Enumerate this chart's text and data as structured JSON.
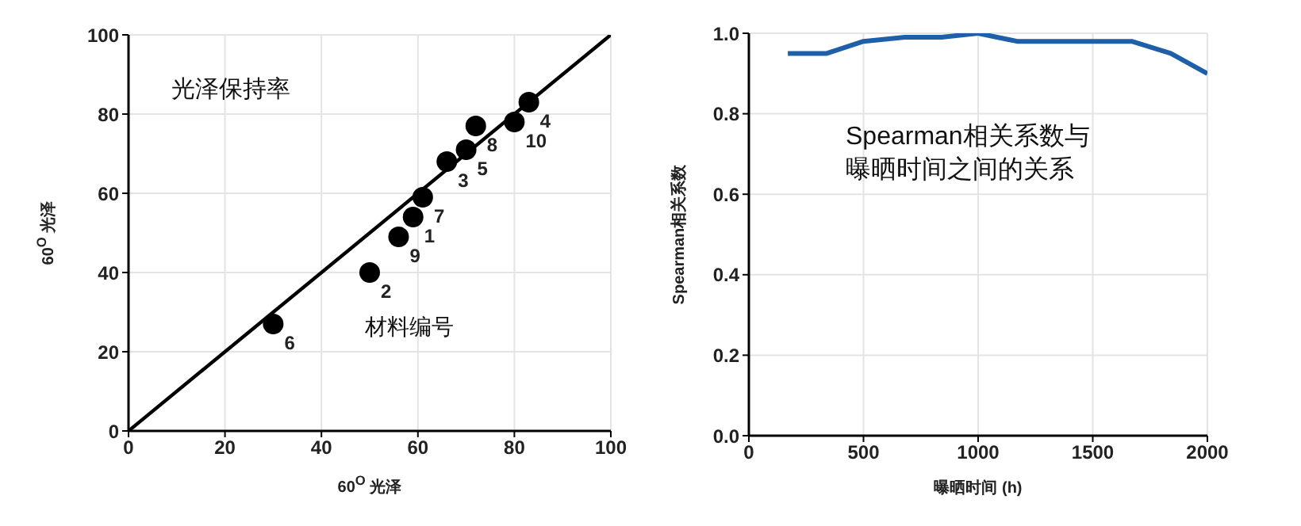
{
  "chart_data": [
    {
      "type": "scatter",
      "title": "光泽保持率",
      "xlabel": "60$^{O}$ 光泽",
      "ylabel": "60$^{O}$ 光泽",
      "annotations": [
        "材料编号",
        {
          "text": "6",
          "x": 30,
          "y": 27
        },
        {
          "text": "2",
          "x": 50,
          "y": 40
        },
        {
          "text": "9",
          "x": 56,
          "y": 49
        },
        {
          "text": "1",
          "x": 59,
          "y": 54
        },
        {
          "text": "7",
          "x": 61,
          "y": 59
        },
        {
          "text": "3",
          "x": 66,
          "y": 68
        },
        {
          "text": "5",
          "x": 70,
          "y": 71
        },
        {
          "text": "8",
          "x": 72,
          "y": 77
        },
        {
          "text": "10",
          "x": 80,
          "y": 78
        },
        {
          "text": "4",
          "x": 83,
          "y": 83
        }
      ],
      "xlim": [
        0,
        100
      ],
      "ylim": [
        0,
        100
      ],
      "xticks": [
        0,
        20,
        40,
        60,
        80,
        100
      ],
      "yticks": [
        0,
        20,
        40,
        60,
        80,
        100
      ],
      "grid": true,
      "series": [
        {
          "color": "#000000",
          "marker": "circle",
          "x": [
            30,
            50,
            56,
            59,
            61,
            66,
            70,
            72,
            80,
            83
          ],
          "values": [
            27,
            40,
            49,
            54,
            59,
            68,
            71,
            77,
            78,
            83
          ]
        },
        {
          "type": "line",
          "color": "#000000",
          "x": [
            0,
            100
          ],
          "values": [
            0,
            100
          ]
        }
      ]
    },
    {
      "type": "line",
      "title": "Spearman相关系数与曝晒时间之间的关系",
      "xlabel": "曝晒时间 (h)",
      "ylabel": "Spearman相关系数",
      "xlim": [
        0,
        2000
      ],
      "ylim": [
        0,
        1
      ],
      "xticks": [
        0,
        500,
        1000,
        1500,
        2000
      ],
      "yticks": [
        {
          "value": 0,
          "label": "0.0"
        },
        {
          "value": 0.2,
          "label": "0.2"
        },
        {
          "value": 0.4,
          "label": "0.4"
        },
        {
          "value": 0.6,
          "label": "0.6"
        },
        {
          "value": 0.8,
          "label": "0.8"
        },
        {
          "value": 1,
          "label": "1.0"
        }
      ],
      "grid": true,
      "series": [
        {
          "color": "#1f5ea8",
          "x": [
            170,
            340,
            500,
            680,
            840,
            1000,
            1170,
            1670,
            1840,
            2000
          ],
          "values": [
            0.95,
            0.95,
            0.98,
            0.99,
            0.99,
            1.0,
            0.98,
            0.98,
            0.95,
            0.9
          ]
        }
      ]
    }
  ]
}
